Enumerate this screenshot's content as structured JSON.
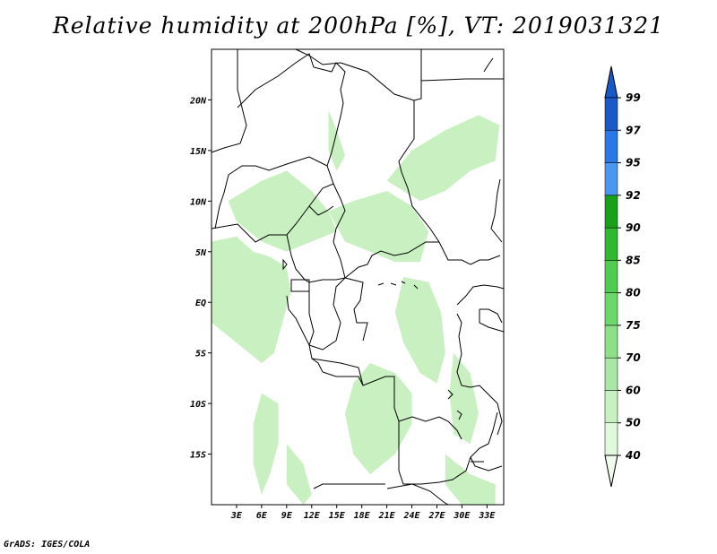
{
  "title": "Relative humidity at 200hPa [%], VT: 2019031321",
  "credit": "GrADS: IGES/COLA",
  "map": {
    "lon_range": [
      0,
      35
    ],
    "lat_range": [
      -20,
      25
    ],
    "lon_ticks": [
      {
        "value": 3,
        "label": "3E"
      },
      {
        "value": 6,
        "label": "6E"
      },
      {
        "value": 9,
        "label": "9E"
      },
      {
        "value": 12,
        "label": "12E"
      },
      {
        "value": 15,
        "label": "15E"
      },
      {
        "value": 18,
        "label": "18E"
      },
      {
        "value": 21,
        "label": "21E"
      },
      {
        "value": 24,
        "label": "24E"
      },
      {
        "value": 27,
        "label": "27E"
      },
      {
        "value": 30,
        "label": "30E"
      },
      {
        "value": 33,
        "label": "33E"
      }
    ],
    "lat_ticks": [
      {
        "value": 20,
        "label": "20N"
      },
      {
        "value": 15,
        "label": "15N"
      },
      {
        "value": 10,
        "label": "10N"
      },
      {
        "value": 5,
        "label": "5N"
      },
      {
        "value": 0,
        "label": "EQ"
      },
      {
        "value": -5,
        "label": "5S"
      },
      {
        "value": -10,
        "label": "10S"
      },
      {
        "value": -15,
        "label": "15S"
      }
    ],
    "humidity_color": "#c8f0c0",
    "humidity_patches": [
      [
        [
          0,
          6
        ],
        [
          3,
          6.5
        ],
        [
          5,
          5
        ],
        [
          7,
          4.5
        ],
        [
          9,
          3.5
        ],
        [
          9.5,
          1
        ],
        [
          8.5,
          -2
        ],
        [
          7.5,
          -5
        ],
        [
          6,
          -6
        ],
        [
          3,
          -4
        ],
        [
          0,
          -2
        ]
      ],
      [
        [
          2,
          10
        ],
        [
          6,
          12
        ],
        [
          9,
          13
        ],
        [
          12,
          11
        ],
        [
          14,
          9
        ],
        [
          15,
          7
        ],
        [
          12,
          6
        ],
        [
          9,
          5
        ],
        [
          6,
          6
        ],
        [
          3,
          8
        ]
      ],
      [
        [
          14,
          9
        ],
        [
          17,
          10
        ],
        [
          21,
          11
        ],
        [
          24,
          9.5
        ],
        [
          26,
          7
        ],
        [
          25,
          4
        ],
        [
          22,
          4
        ],
        [
          19,
          5
        ],
        [
          16,
          6
        ]
      ],
      [
        [
          23,
          2.5
        ],
        [
          26,
          2
        ],
        [
          27.5,
          -1
        ],
        [
          28,
          -5
        ],
        [
          27,
          -8
        ],
        [
          25,
          -7
        ],
        [
          23,
          -4
        ],
        [
          22,
          -1
        ]
      ],
      [
        [
          19,
          -6
        ],
        [
          22,
          -7
        ],
        [
          24,
          -9
        ],
        [
          24,
          -12
        ],
        [
          22,
          -15
        ],
        [
          19,
          -17
        ],
        [
          17,
          -15
        ],
        [
          16,
          -11
        ],
        [
          17,
          -8
        ]
      ],
      [
        [
          6,
          -9
        ],
        [
          8,
          -10
        ],
        [
          8,
          -14
        ],
        [
          7,
          -17
        ],
        [
          6,
          -19
        ],
        [
          5,
          -16
        ],
        [
          5,
          -12
        ]
      ],
      [
        [
          21,
          12
        ],
        [
          24,
          15
        ],
        [
          28,
          17
        ],
        [
          32,
          18.5
        ],
        [
          34.5,
          17.5
        ],
        [
          34,
          14
        ],
        [
          31,
          13
        ],
        [
          28,
          11
        ],
        [
          25,
          10
        ]
      ],
      [
        [
          14,
          19
        ],
        [
          15,
          17
        ],
        [
          16,
          14.5
        ],
        [
          15,
          13
        ],
        [
          14,
          15
        ]
      ],
      [
        [
          29,
          -5
        ],
        [
          31,
          -7
        ],
        [
          32,
          -11
        ],
        [
          31,
          -14
        ],
        [
          29,
          -13
        ],
        [
          28.5,
          -9
        ]
      ],
      [
        [
          9,
          -14
        ],
        [
          11,
          -16
        ],
        [
          12,
          -19
        ],
        [
          11,
          -20
        ],
        [
          9,
          -18
        ]
      ],
      [
        [
          28,
          -15
        ],
        [
          31,
          -17
        ],
        [
          34,
          -18
        ],
        [
          34,
          -20
        ],
        [
          30,
          -20
        ],
        [
          28,
          -18
        ]
      ]
    ],
    "border_color": "#000000"
  },
  "colorbar": {
    "levels": [
      "40",
      "50",
      "60",
      "70",
      "75",
      "80",
      "85",
      "90",
      "92",
      "95",
      "97",
      "99"
    ],
    "colors": [
      "#f0fcec",
      "#e0f8dc",
      "#c8f0c0",
      "#a8e8a4",
      "#8ce088",
      "#6cd86c",
      "#50cc50",
      "#30b830",
      "#18a018",
      "#4898f0",
      "#2878e8",
      "#1858c8"
    ]
  }
}
